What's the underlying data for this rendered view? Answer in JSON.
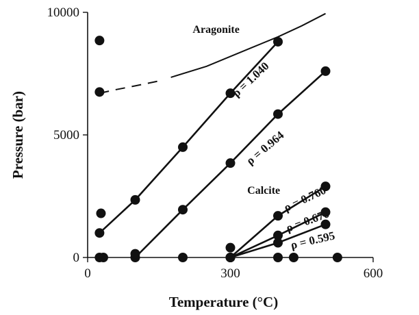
{
  "chart_data": {
    "type": "line",
    "title": "",
    "xlabel": "Temperature (°C)",
    "ylabel": "Pressure (bar)",
    "xlim": [
      0,
      600
    ],
    "ylim": [
      0,
      10000
    ],
    "xticks": [
      0,
      300,
      600
    ],
    "yticks": [
      0,
      5000,
      10000
    ],
    "grid": false,
    "legend": "none",
    "region_labels": [
      {
        "text": "Aragonite",
        "x": 270,
        "y": 9160
      },
      {
        "text": "Calcite",
        "x": 370,
        "y": 2600
      }
    ],
    "series": [
      {
        "label": "ρ = 1.040",
        "x": [
          25,
          100,
          200,
          300,
          400
        ],
        "y": [
          1000,
          2350,
          4500,
          6700,
          8800
        ],
        "label_at": [
          348,
          7150
        ],
        "label_angle": -43
      },
      {
        "label": "ρ = 0.964",
        "x": [
          100,
          200,
          300,
          400,
          500
        ],
        "y": [
          0,
          1950,
          3850,
          5850,
          7600
        ],
        "label_at": [
          378,
          4350
        ],
        "label_angle": -40
      },
      {
        "label": "ρ = 0.760",
        "x": [
          300,
          400,
          500
        ],
        "y": [
          0,
          1700,
          2900
        ],
        "label_at": [
          460,
          2250
        ],
        "label_angle": -25
      },
      {
        "label": "ρ = 0.670",
        "x": [
          300,
          400,
          500
        ],
        "y": [
          0,
          900,
          1850
        ],
        "label_at": [
          465,
          1350
        ],
        "label_angle": -20
      },
      {
        "label": "ρ = 0.595",
        "x": [
          300,
          400,
          500
        ],
        "y": [
          0,
          600,
          1350
        ],
        "label_at": [
          475,
          550
        ],
        "label_angle": -13
      }
    ],
    "extra_points": [
      {
        "x": 25,
        "y": 8850
      },
      {
        "x": 25,
        "y": 6750
      },
      {
        "x": 28,
        "y": 1800
      },
      {
        "x": 25,
        "y": 0
      },
      {
        "x": 33,
        "y": 0
      },
      {
        "x": 100,
        "y": 150
      },
      {
        "x": 200,
        "y": 0
      },
      {
        "x": 300,
        "y": 400
      },
      {
        "x": 400,
        "y": 0
      },
      {
        "x": 433,
        "y": 0
      },
      {
        "x": 525,
        "y": 0
      }
    ],
    "phase_boundary": {
      "dashed": {
        "x": [
          25,
          60,
          100,
          150
        ],
        "y": [
          6700,
          6850,
          7000,
          7200
        ]
      },
      "solid": {
        "x": [
          175,
          250,
          300,
          350,
          400,
          450,
          500
        ],
        "y": [
          7350,
          7800,
          8200,
          8600,
          9000,
          9450,
          9950
        ]
      }
    }
  }
}
